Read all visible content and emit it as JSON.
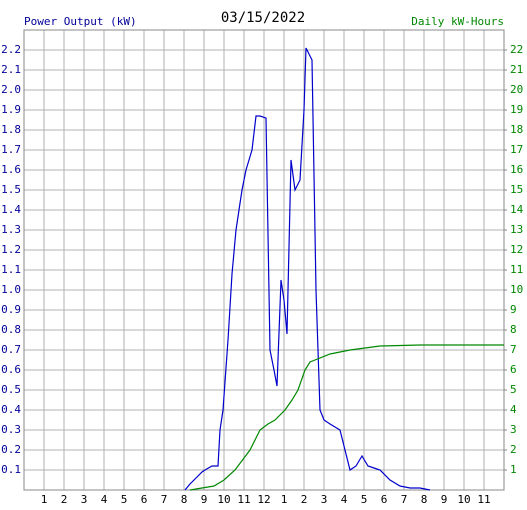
{
  "chart_data": {
    "type": "line",
    "title": "03/15/2022",
    "y_label": "Power Output (kW)",
    "y2_label": "Daily kW-Hours",
    "xlim": [
      0,
      24
    ],
    "xticks": [
      1,
      2,
      3,
      4,
      5,
      6,
      7,
      8,
      9,
      10,
      11,
      12,
      {
        "value": 13,
        "label": "1"
      },
      {
        "value": 14,
        "label": "2"
      },
      {
        "value": 15,
        "label": "3"
      },
      {
        "value": 16,
        "label": "4"
      },
      {
        "value": 17,
        "label": "5"
      },
      {
        "value": 18,
        "label": "6"
      },
      {
        "value": 19,
        "label": "7"
      },
      {
        "value": 20,
        "label": "8"
      },
      {
        "value": 21,
        "label": "9"
      },
      {
        "value": 22,
        "label": "10"
      },
      {
        "value": 23,
        "label": "11"
      }
    ],
    "ylim": [
      0,
      2.3
    ],
    "yticks": [
      0.1,
      0.2,
      0.3,
      0.4,
      0.5,
      0.6,
      0.7,
      0.8,
      0.9,
      {
        "value": 1,
        "label": "1.0"
      },
      1.1,
      1.2,
      1.3,
      1.4,
      1.5,
      1.6,
      1.7,
      1.8,
      1.9,
      {
        "value": 2,
        "label": "2.0"
      },
      2.1,
      2.2
    ],
    "y2lim": [
      0,
      23
    ],
    "y2ticks": [
      1,
      2,
      3,
      4,
      5,
      6,
      7,
      8,
      9,
      10,
      11,
      12,
      13,
      14,
      15,
      16,
      17,
      18,
      19,
      20,
      21,
      22
    ],
    "y_color": "#000099",
    "y2_color": "#008800",
    "grid": true,
    "series": [
      {
        "name": "Power Output (kW)",
        "color": "#0000cc",
        "axis": "y",
        "x": [
          8.05,
          8.3,
          8.6,
          8.9,
          9.05,
          9.4,
          9.7,
          9.8,
          9.95,
          10.2,
          10.4,
          10.6,
          10.9,
          11.1,
          11.4,
          11.6,
          11.8,
          12.1,
          12.3,
          12.5,
          12.65,
          12.85,
          13.0,
          13.15,
          13.35,
          13.55,
          13.8,
          14.0,
          14.1,
          14.4,
          14.6,
          14.8,
          15.0,
          15.3,
          15.8,
          16.05,
          16.3,
          16.6,
          16.9,
          17.2,
          17.5,
          17.8,
          18.3,
          18.8,
          19.3,
          19.8,
          20.3
        ],
        "values": [
          0,
          0.03,
          0.06,
          0.09,
          0.1,
          0.12,
          0.12,
          0.3,
          0.4,
          0.75,
          1.08,
          1.3,
          1.5,
          1.6,
          1.7,
          1.87,
          1.87,
          1.86,
          0.7,
          0.6,
          0.52,
          1.05,
          0.95,
          0.78,
          1.65,
          1.5,
          1.55,
          1.9,
          2.21,
          2.15,
          1.0,
          0.4,
          0.35,
          0.33,
          0.3,
          0.2,
          0.1,
          0.12,
          0.17,
          0.12,
          0.11,
          0.1,
          0.05,
          0.02,
          0.01,
          0.01,
          0
        ]
      },
      {
        "name": "Daily kW-Hours",
        "color": "#008800",
        "axis": "y2",
        "x": [
          8.3,
          9.5,
          10.0,
          10.55,
          11.0,
          11.3,
          11.8,
          12.2,
          12.55,
          13.05,
          13.4,
          13.7,
          14.05,
          14.3,
          14.55,
          15.3,
          16.3,
          17.8,
          19.8,
          24
        ],
        "values": [
          0,
          0.2,
          0.5,
          1,
          1.6,
          2,
          3,
          3.3,
          3.5,
          4,
          4.5,
          5,
          6,
          6.4,
          6.5,
          6.8,
          7.0,
          7.2,
          7.25,
          7.25
        ]
      }
    ]
  }
}
